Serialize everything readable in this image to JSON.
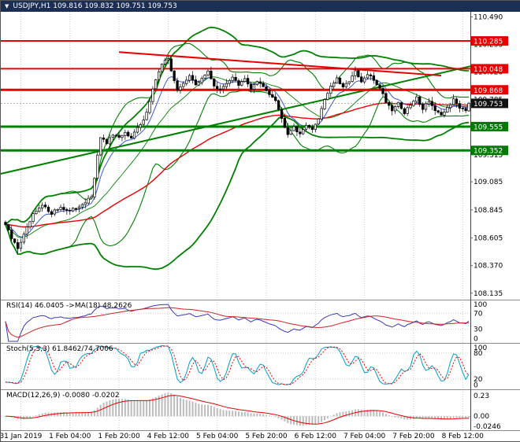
{
  "header": {
    "symbol_info": "USDJPY,H1  109.816 109.832 109.751 109.753"
  },
  "colors": {
    "titlebar_bg": "#1B2F54",
    "titlebar_text": "#FFFFFF",
    "chart_bg": "#FFFFFF",
    "grid": "#C9C9C9",
    "separator": "#8A8A8A",
    "axis_line": "#444444",
    "axis_text": "#000000",
    "candle_up_fill": "#FFFFFF",
    "candle_down_fill": "#000000",
    "candle_outline": "#000000",
    "band_green": "#008000",
    "line_red": "#E60000",
    "fast_ma_blue": "#3C5AD2",
    "badge_red": "#E60000",
    "badge_green": "#007A00",
    "badge_black": "#111111",
    "rsi_line": "#3A3AB4",
    "rsi_ma": "#CC2222",
    "stoch_k": "#00A0C8",
    "stoch_d": "#E60000",
    "macd_hist": "#BBBBBB",
    "macd_signal": "#E60000",
    "current_price_line": "#888888"
  },
  "price_axis": {
    "ticks": [
      {
        "price": 110.49,
        "label": "110.490"
      },
      {
        "price": 110.255,
        "label": "110.255"
      },
      {
        "price": 110.02,
        "label": "110.020"
      },
      {
        "price": 109.785,
        "label": "109.785"
      },
      {
        "price": 109.55,
        "label": "109.550"
      },
      {
        "price": 109.315,
        "label": "109.315"
      },
      {
        "price": 109.085,
        "label": "109.085"
      },
      {
        "price": 108.845,
        "label": "108.845"
      },
      {
        "price": 108.605,
        "label": "108.605"
      },
      {
        "price": 108.37,
        "label": "108.370"
      },
      {
        "price": 108.135,
        "label": "108.135"
      }
    ],
    "badges": [
      {
        "price": 110.285,
        "label": "110.285",
        "type": "red"
      },
      {
        "price": 110.048,
        "label": "110.048",
        "type": "red"
      },
      {
        "price": 109.868,
        "label": "109.868",
        "type": "red"
      },
      {
        "price": 109.753,
        "label": "109.753",
        "type": "black"
      },
      {
        "price": 109.555,
        "label": "109.555",
        "type": "green"
      },
      {
        "price": 109.352,
        "label": "109.352",
        "type": "green"
      }
    ]
  },
  "time_axis": {
    "labels": [
      {
        "bar": 5,
        "label": "31 Jan 2019"
      },
      {
        "bar": 21,
        "label": "1 Feb 04:00"
      },
      {
        "bar": 37,
        "label": "1 Feb 20:00"
      },
      {
        "bar": 53,
        "label": "4 Feb 12:00"
      },
      {
        "bar": 69,
        "label": "5 Feb 04:00"
      },
      {
        "bar": 85,
        "label": "5 Feb 20:00"
      },
      {
        "bar": 101,
        "label": "6 Feb 12:00"
      },
      {
        "bar": 117,
        "label": "7 Feb 04:00"
      },
      {
        "bar": 133,
        "label": "7 Feb 20:00"
      },
      {
        "bar": 149,
        "label": "8 Feb 12:00"
      }
    ]
  },
  "panels": {
    "rsi": {
      "label": "RSI(14) 46.0405  ->MA(18) 48.2626",
      "axis": [
        {
          "v": 100,
          "label": "100"
        },
        {
          "v": 70,
          "label": "70"
        },
        {
          "v": 30,
          "label": "30"
        },
        {
          "v": 0,
          "label": "0"
        }
      ]
    },
    "stoch": {
      "label": "Stoch(5,3,3) 61.8462/74.7006",
      "axis": [
        {
          "v": 100,
          "label": "100"
        },
        {
          "v": 80,
          "label": "80"
        },
        {
          "v": 20,
          "label": "20"
        },
        {
          "v": 0,
          "label": "0"
        }
      ]
    },
    "macd": {
      "label": "MACD(12,26,9) -0.0080 -0.0202",
      "axis_top": "0.23",
      "axis_zero": "0.00",
      "axis_bottom": "-0.0246"
    }
  },
  "chart_data": {
    "type": "candlestick",
    "symbol": "USDJPY",
    "timeframe": "H1",
    "quote": {
      "open": 109.816,
      "high": 109.832,
      "low": 109.751,
      "close": 109.753
    },
    "bars": 152,
    "price_range": [
      108.1,
      110.52
    ],
    "close_waypoints": [
      [
        0,
        108.72
      ],
      [
        2,
        108.6
      ],
      [
        4,
        108.52
      ],
      [
        6,
        108.63
      ],
      [
        9,
        108.8
      ],
      [
        12,
        108.88
      ],
      [
        15,
        108.82
      ],
      [
        18,
        108.87
      ],
      [
        21,
        108.83
      ],
      [
        24,
        108.88
      ],
      [
        27,
        108.93
      ],
      [
        28,
        108.96
      ],
      [
        29,
        109.1
      ],
      [
        30,
        109.32
      ],
      [
        31,
        109.45
      ],
      [
        33,
        109.42
      ],
      [
        35,
        109.48
      ],
      [
        37,
        109.45
      ],
      [
        39,
        109.5
      ],
      [
        41,
        109.47
      ],
      [
        43,
        109.54
      ],
      [
        45,
        109.6
      ],
      [
        47,
        109.78
      ],
      [
        49,
        109.96
      ],
      [
        51,
        110.08
      ],
      [
        53,
        110.14
      ],
      [
        54,
        110.04
      ],
      [
        56,
        109.86
      ],
      [
        58,
        109.92
      ],
      [
        60,
        110.0
      ],
      [
        62,
        109.9
      ],
      [
        64,
        109.97
      ],
      [
        66,
        110.02
      ],
      [
        68,
        109.91
      ],
      [
        70,
        109.86
      ],
      [
        72,
        109.93
      ],
      [
        74,
        109.98
      ],
      [
        76,
        109.9
      ],
      [
        78,
        109.96
      ],
      [
        80,
        109.88
      ],
      [
        82,
        109.94
      ],
      [
        84,
        109.89
      ],
      [
        86,
        109.84
      ],
      [
        88,
        109.79
      ],
      [
        90,
        109.62
      ],
      [
        92,
        109.5
      ],
      [
        94,
        109.56
      ],
      [
        96,
        109.48
      ],
      [
        98,
        109.58
      ],
      [
        100,
        109.52
      ],
      [
        102,
        109.63
      ],
      [
        104,
        109.79
      ],
      [
        106,
        109.9
      ],
      [
        108,
        109.96
      ],
      [
        110,
        109.88
      ],
      [
        112,
        109.95
      ],
      [
        114,
        110.02
      ],
      [
        116,
        109.93
      ],
      [
        118,
        110.0
      ],
      [
        120,
        109.95
      ],
      [
        122,
        109.89
      ],
      [
        124,
        109.77
      ],
      [
        126,
        109.7
      ],
      [
        128,
        109.76
      ],
      [
        130,
        109.67
      ],
      [
        132,
        109.74
      ],
      [
        134,
        109.8
      ],
      [
        136,
        109.71
      ],
      [
        138,
        109.78
      ],
      [
        140,
        109.69
      ],
      [
        142,
        109.64
      ],
      [
        144,
        109.72
      ],
      [
        146,
        109.78
      ],
      [
        148,
        109.72
      ],
      [
        150,
        109.7
      ],
      [
        151,
        109.753
      ]
    ],
    "levels": [
      {
        "price": 110.285,
        "color": "red",
        "width": 2
      },
      {
        "price": 110.048,
        "color": "red",
        "width": 2
      },
      {
        "price": 109.868,
        "color": "red",
        "width": 3
      },
      {
        "price": 109.555,
        "color": "green",
        "width": 3
      },
      {
        "price": 109.352,
        "color": "green",
        "width": 3
      }
    ],
    "current_price": 109.753,
    "trendlines": [
      {
        "name": "ascending-support",
        "color": "green",
        "width": 2,
        "p1": [
          -2,
          109.15
        ],
        "p2": [
          170,
          110.18
        ]
      },
      {
        "name": "descending-resistance",
        "color": "red",
        "width": 2,
        "p1": [
          37,
          110.19
        ],
        "p2": [
          142,
          109.99
        ]
      }
    ],
    "indicators": {
      "bb_outer": {
        "period": 48,
        "dev": 2.0
      },
      "bb_inner": {
        "period": 20,
        "dev": 2.0
      },
      "ema_fast": {
        "period": 8
      },
      "ema_slow": {
        "period": 72
      },
      "rsi": {
        "period": 14,
        "ma": 18,
        "levels": [
          70,
          30
        ],
        "last": 46.0405,
        "ma_last": 48.2626
      },
      "stoch": {
        "k": 5,
        "slowing": 3,
        "d": 3,
        "levels": [
          80,
          20
        ],
        "last_k": 61.8462,
        "last_d": 74.7006
      },
      "macd": {
        "fast": 12,
        "slow": 26,
        "signal": 9,
        "last": -0.008,
        "last_signal": -0.0202
      }
    }
  }
}
